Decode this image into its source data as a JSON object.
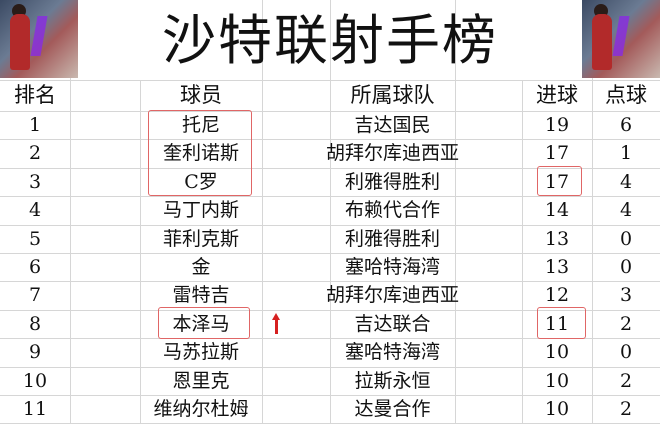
{
  "title": "沙特联射手榜",
  "headers": {
    "rank": "排名",
    "player": "球员",
    "team": "所属球队",
    "goals": "进球",
    "penalties": "点球"
  },
  "rows": [
    {
      "rank": "1",
      "player": "托尼",
      "team": "吉达国民",
      "goals": "19",
      "penalties": "6"
    },
    {
      "rank": "2",
      "player": "奎利诺斯",
      "team": "胡拜尔库迪西亚",
      "goals": "17",
      "penalties": "1"
    },
    {
      "rank": "3",
      "player": "C罗",
      "team": "利雅得胜利",
      "goals": "17",
      "penalties": "4"
    },
    {
      "rank": "4",
      "player": "马丁内斯",
      "team": "布赖代合作",
      "goals": "14",
      "penalties": "4"
    },
    {
      "rank": "5",
      "player": "菲利克斯",
      "team": "利雅得胜利",
      "goals": "13",
      "penalties": "0"
    },
    {
      "rank": "6",
      "player": "金",
      "team": "塞哈特海湾",
      "goals": "13",
      "penalties": "0"
    },
    {
      "rank": "7",
      "player": "雷特吉",
      "team": "胡拜尔库迪西亚",
      "goals": "12",
      "penalties": "3"
    },
    {
      "rank": "8",
      "player": "本泽马",
      "team": "吉达联合",
      "goals": "11",
      "penalties": "2"
    },
    {
      "rank": "9",
      "player": "马苏拉斯",
      "team": "塞哈特海湾",
      "goals": "10",
      "penalties": "0"
    },
    {
      "rank": "10",
      "player": "恩里克",
      "team": "拉斯永恒",
      "goals": "10",
      "penalties": "2"
    },
    {
      "rank": "11",
      "player": "维纳尔杜姆",
      "team": "达曼合作",
      "goals": "10",
      "penalties": "2"
    }
  ],
  "colors": {
    "highlight_box": "#e06666",
    "arrow": "#d62020",
    "gridline": "#d6d6d6"
  },
  "icons": {
    "corner_image": "anime-basketball-player-image",
    "annotation": "red-arrow-icon"
  }
}
